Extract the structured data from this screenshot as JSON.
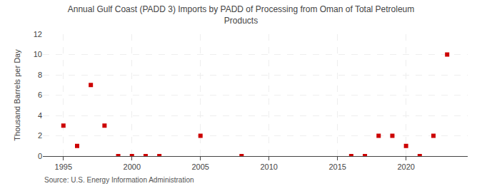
{
  "chart_data": {
    "type": "scatter",
    "title": "Annual Gulf Coast (PADD 3) Imports by PADD of Processing from Oman of Total Petroleum\nProducts",
    "ylabel": "Thousand Barrels per Day",
    "annotations": [
      "Source: U.S. Energy Information Administration"
    ],
    "x": [
      1995,
      1996,
      1997,
      1998,
      1999,
      2000,
      2001,
      2002,
      2005,
      2008,
      2016,
      2017,
      2018,
      2019,
      2020,
      2021,
      2022,
      2023
    ],
    "values": [
      3,
      1,
      7,
      3,
      0,
      0,
      0,
      0,
      2,
      0,
      0,
      0,
      2,
      2,
      1,
      0,
      2,
      10
    ],
    "color": "#cc0000",
    "marker": "square",
    "xlim": [
      1993.5,
      2024.5
    ],
    "ylim": [
      0,
      12
    ],
    "xticks": [
      1995,
      2000,
      2005,
      2010,
      2015,
      2020
    ],
    "yticks": [
      0,
      2,
      4,
      6,
      8,
      10,
      12
    ],
    "grid": true
  }
}
